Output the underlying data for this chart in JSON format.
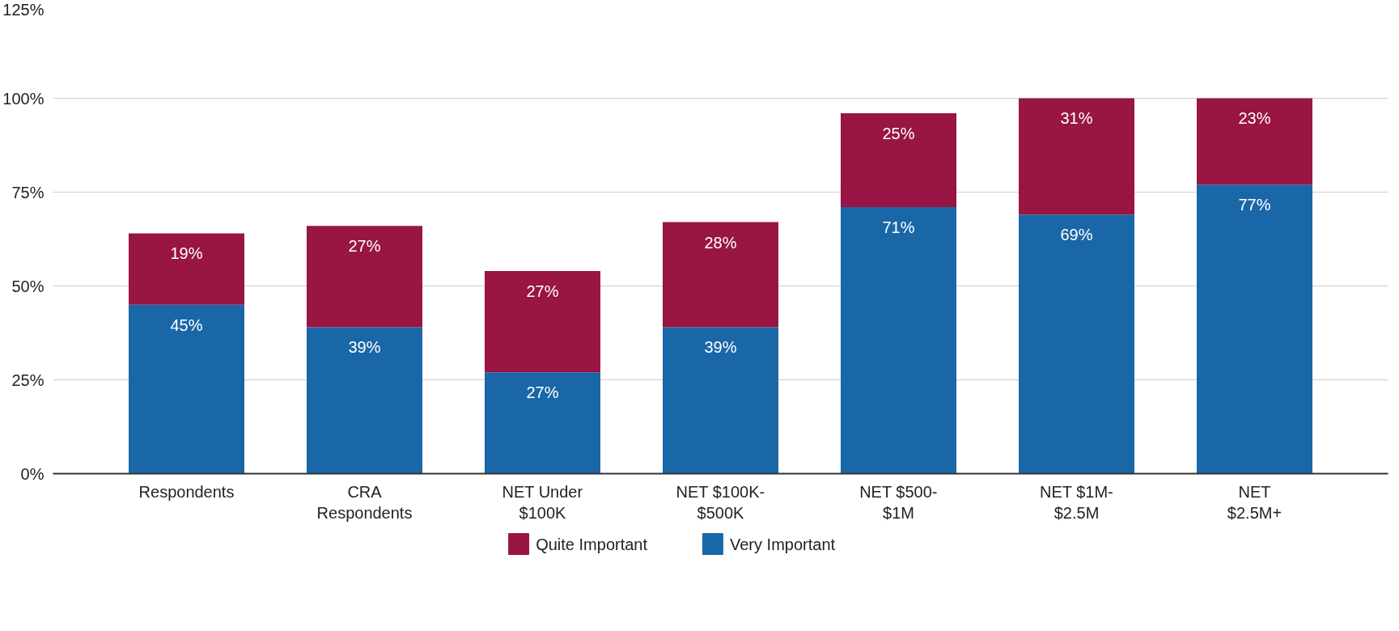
{
  "chart_data": {
    "type": "bar",
    "stacked": true,
    "categories": [
      "Respondents",
      "CRA\nRespondents",
      "NET Under\n$100K",
      "NET $100K-\n$500K",
      "NET $500-\n$1M",
      "NET $1M-\n$2.5M",
      "NET\n$2.5M+"
    ],
    "series": [
      {
        "name": "Very Important",
        "color": "#1a67a8",
        "values": [
          45,
          39,
          27,
          39,
          71,
          69,
          77
        ],
        "value_labels": [
          "45%",
          "39%",
          "27%",
          "39%",
          "71%",
          "69%",
          "77%"
        ]
      },
      {
        "name": "Quite Important",
        "color": "#981544",
        "values": [
          19,
          27,
          27,
          28,
          25,
          31,
          23
        ],
        "value_labels": [
          "19%",
          "27%",
          "27%",
          "28%",
          "25%",
          "31%",
          "23%"
        ]
      }
    ],
    "ylim": [
      0,
      125
    ],
    "yticks": [
      {
        "value": 0,
        "label": "0%"
      },
      {
        "value": 25,
        "label": "25%"
      },
      {
        "value": 50,
        "label": "50%"
      },
      {
        "value": 75,
        "label": "75%"
      },
      {
        "value": 100,
        "label": "100%"
      },
      {
        "value": 125,
        "label": "125%"
      }
    ],
    "grid": "y",
    "legend": "bottom"
  }
}
